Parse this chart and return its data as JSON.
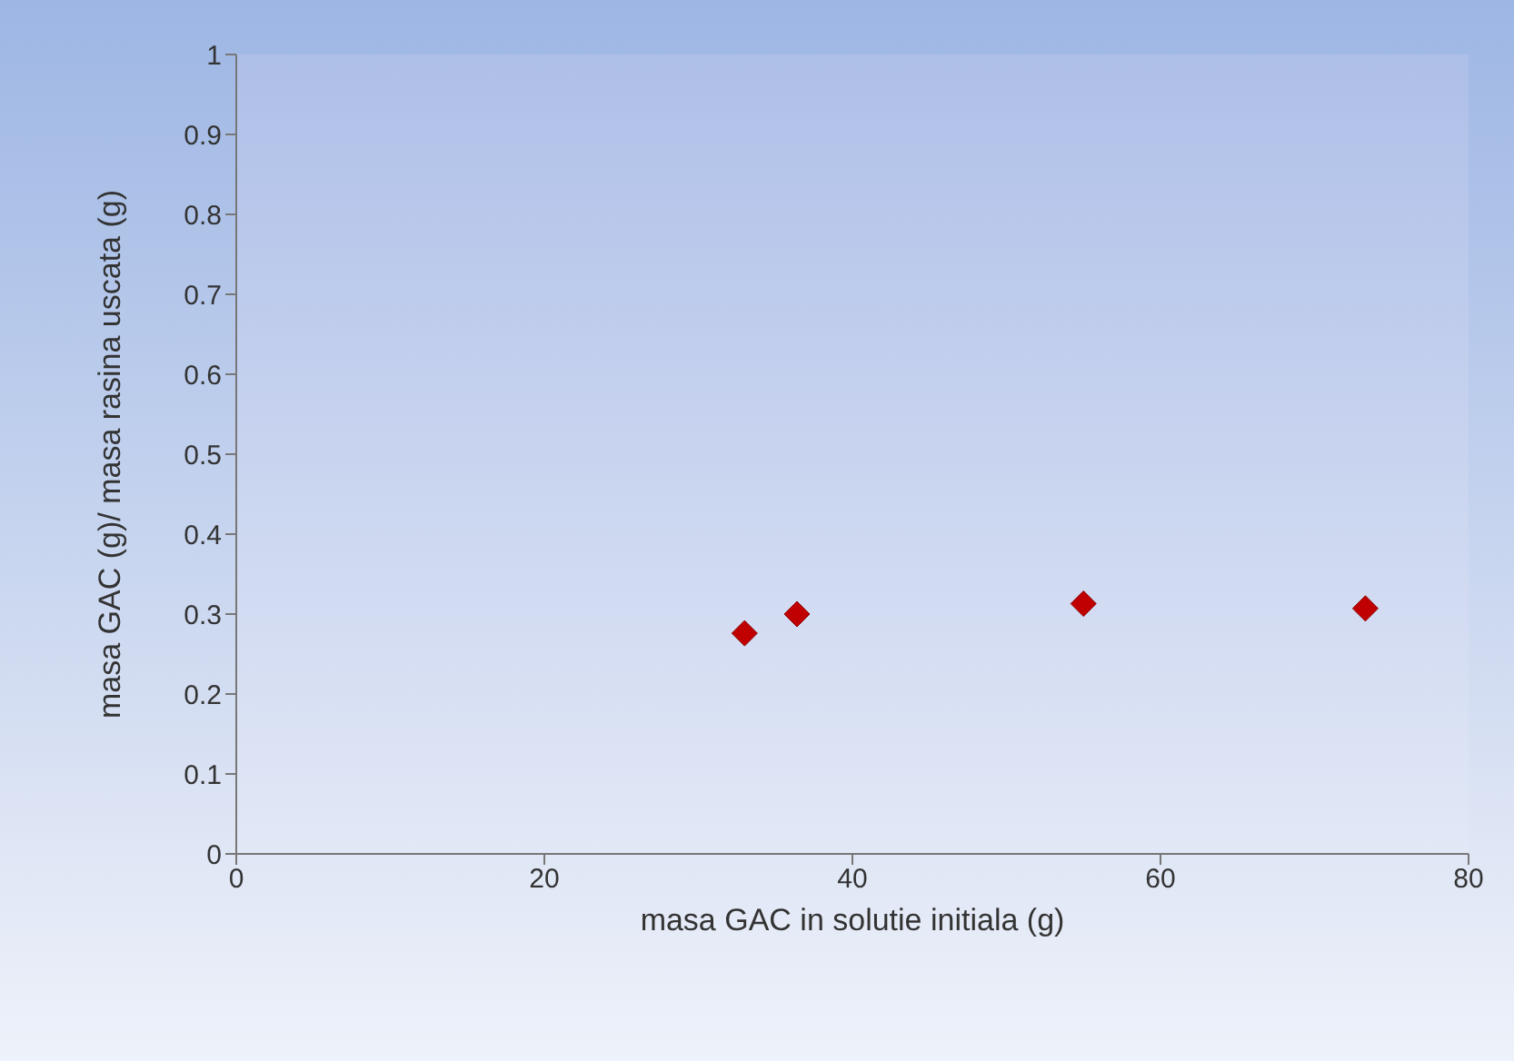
{
  "chart_data": {
    "type": "scatter",
    "xlabel": "masa GAC in solutie initiala (g)",
    "ylabel": "masa GAC (g)/ masa rasina uscata (g)",
    "x": [
      33,
      36.4,
      55,
      73.3
    ],
    "series": [
      {
        "color": "#c00000",
        "values": [
          0.276,
          0.3,
          0.313,
          0.307
        ]
      }
    ],
    "xlim": [
      0,
      80
    ],
    "xticks": [
      0,
      20,
      40,
      60,
      80
    ],
    "ylim": [
      0,
      1
    ],
    "yticks": [
      0,
      0.1,
      0.2,
      0.3,
      0.4,
      0.5,
      0.6,
      0.7,
      0.8,
      0.9,
      1
    ],
    "grid": false,
    "legend": false,
    "marker": "diamond"
  }
}
